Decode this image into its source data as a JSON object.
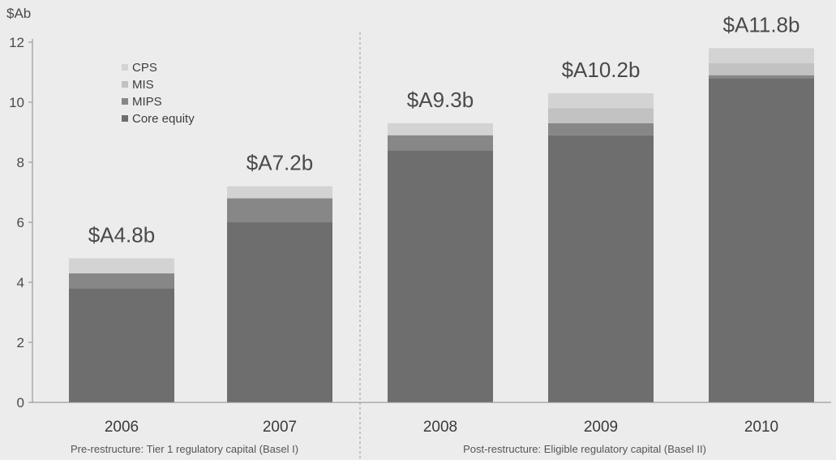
{
  "chart_data": {
    "type": "bar",
    "stacked": true,
    "ylabel": "$Ab",
    "ylim": [
      0,
      12
    ],
    "yticks": [
      0,
      2,
      4,
      6,
      8,
      10,
      12
    ],
    "categories": [
      "2006",
      "2007",
      "2008",
      "2009",
      "2010"
    ],
    "series": [
      {
        "name": "Core equity",
        "color": "#6e6e6e",
        "values": [
          3.8,
          6.0,
          8.4,
          8.9,
          10.8
        ]
      },
      {
        "name": "MIPS",
        "color": "#878787",
        "values": [
          0.5,
          0.8,
          0.5,
          0.4,
          0.1
        ]
      },
      {
        "name": "MIS",
        "color": "#c2c2c2",
        "values": [
          0.0,
          0.0,
          0.0,
          0.5,
          0.4
        ]
      },
      {
        "name": "CPS",
        "color": "#d3d3d3",
        "values": [
          0.5,
          0.4,
          0.4,
          0.5,
          0.5
        ]
      }
    ],
    "totals": [
      "$A4.8b",
      "$A7.2b",
      "$A9.3b",
      "$A10.2b",
      "$A11.8b"
    ],
    "legend_order": [
      "CPS",
      "MIS",
      "MIPS",
      "Core equity"
    ],
    "legend_position": "top-left",
    "grid": false,
    "groups": [
      {
        "label": "Pre-restructure:  Tier 1 regulatory capital (Basel I)"
      },
      {
        "label": "Post-restructure:  Eligible regulatory capital (Basel II)"
      }
    ],
    "group_split_after_index": 1
  }
}
